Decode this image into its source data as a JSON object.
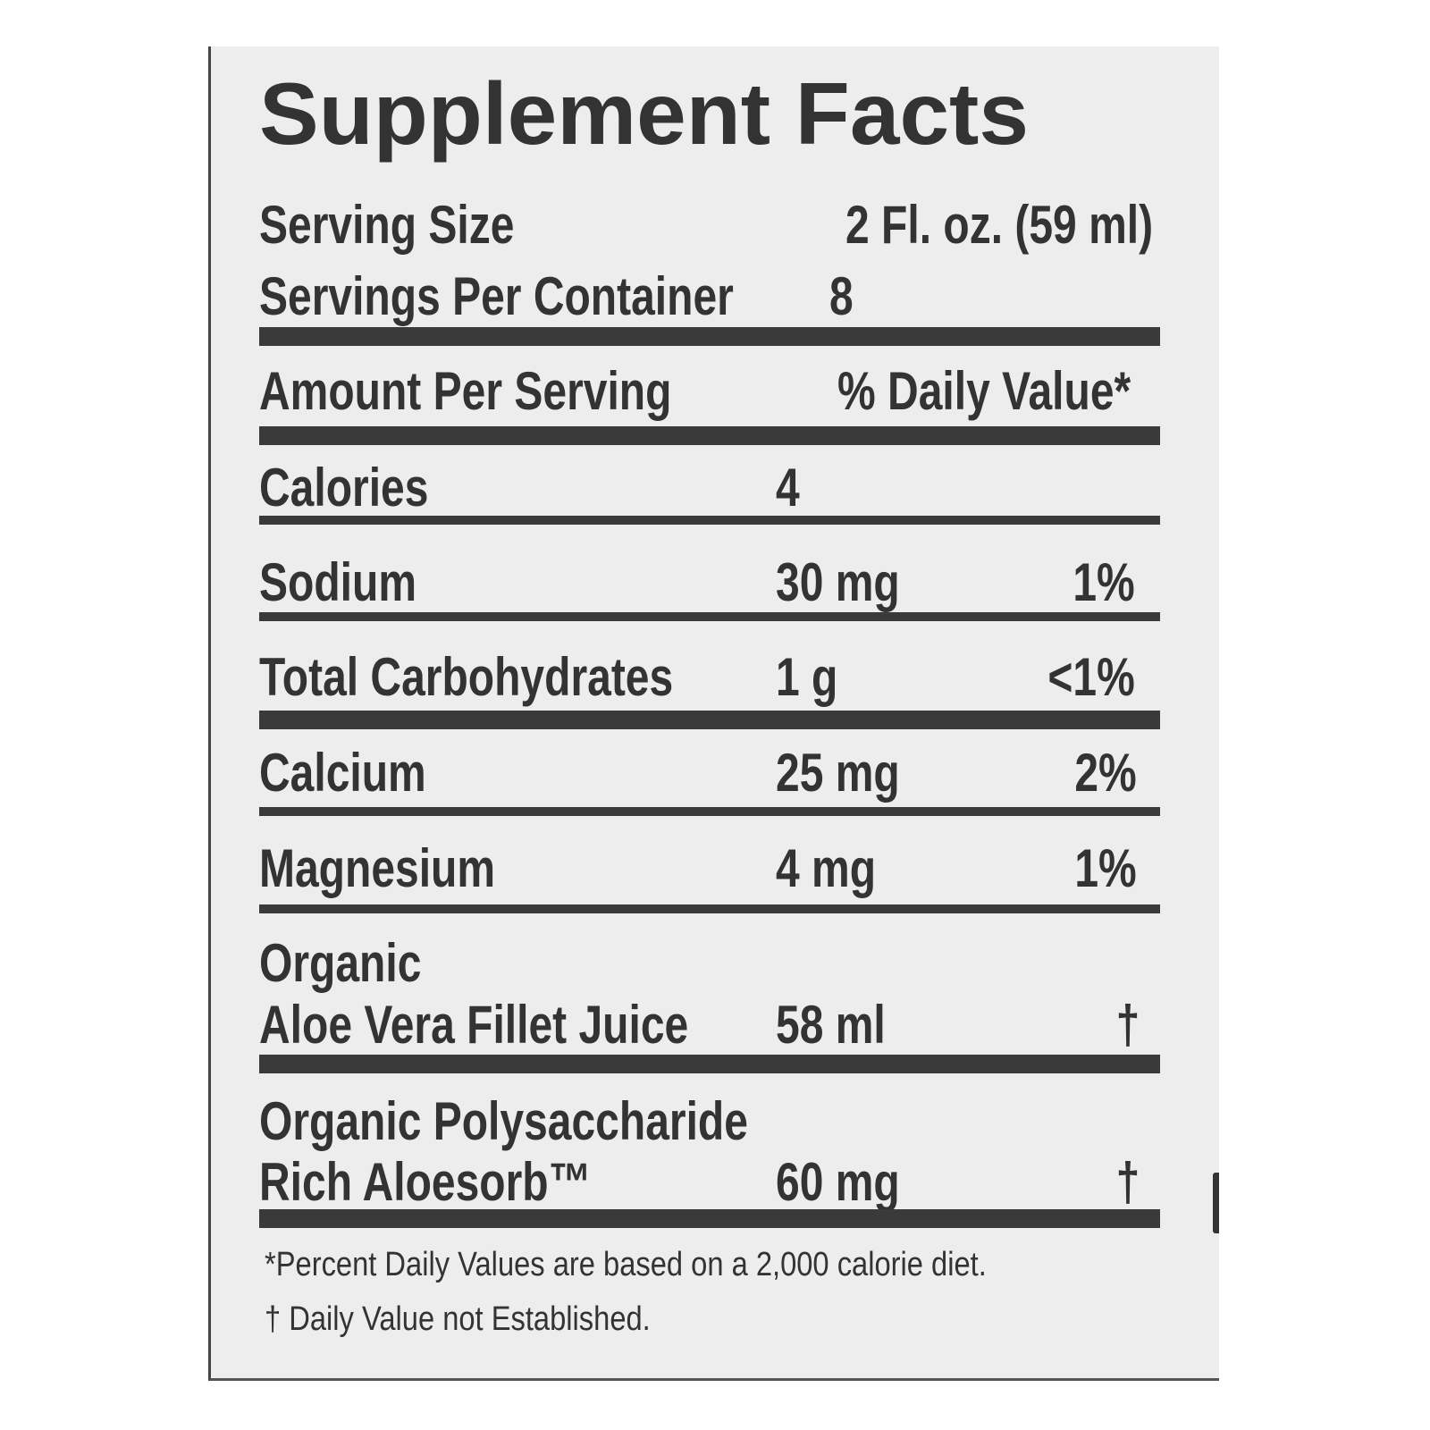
{
  "title": "Supplement Facts",
  "serving_size": {
    "label": "Serving Size",
    "value": "2 Fl. oz. (59 ml)"
  },
  "servings_per_container": {
    "label": "Servings Per Container",
    "value": "8"
  },
  "header": {
    "amount": "Amount Per Serving",
    "dv": "% Daily Value*"
  },
  "rows": [
    {
      "name": "Calories",
      "amount": "4",
      "dv": ""
    },
    {
      "name": "Sodium",
      "amount": "30 mg",
      "dv": "1%"
    },
    {
      "name": "Total Carbohydrates",
      "amount": "1 g",
      "dv": "<1%"
    },
    {
      "name": "Calcium",
      "amount": "25 mg",
      "dv": "2%"
    },
    {
      "name": "Magnesium",
      "amount": "4 mg",
      "dv": "1%"
    },
    {
      "name_line1": "Organic",
      "name_line2": "Aloe Vera Fillet Juice",
      "amount": "58 ml",
      "dv": "†"
    },
    {
      "name_line1": "Organic Polysaccharide",
      "name_line2": "Rich Aloesorb™",
      "amount": "60 mg",
      "dv": "†"
    }
  ],
  "footnotes": [
    "*Percent Daily Values are based on a 2,000 calorie diet.",
    "† Daily Value not Established."
  ]
}
